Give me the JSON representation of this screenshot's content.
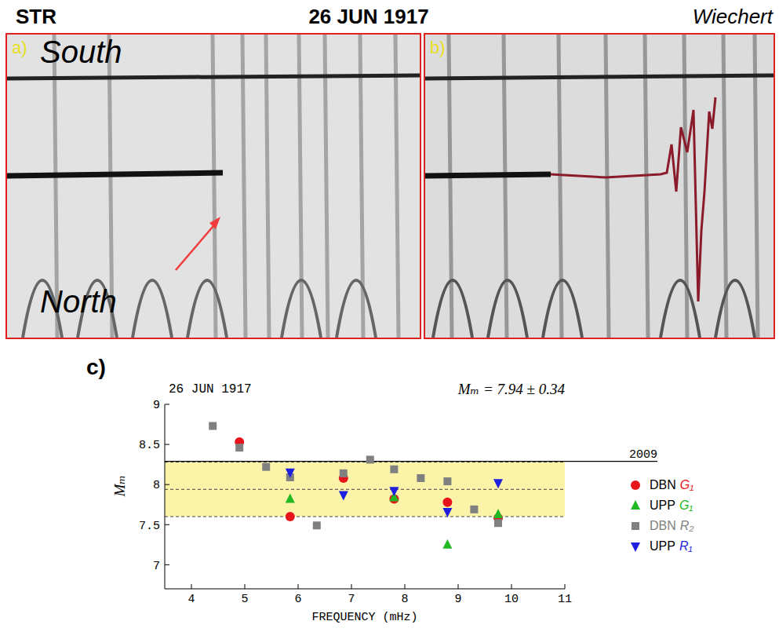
{
  "header": {
    "left": "STR",
    "center": "26 JUN 1917",
    "right": "Wiechert"
  },
  "panels": [
    {
      "letter": "a)",
      "top_label": "South",
      "bottom_label": "North"
    },
    {
      "letter": "b)"
    }
  ],
  "chart_data": {
    "type": "scatter",
    "panel_letter": "c)",
    "title": "26 JUN 1917",
    "subtitle": "Mₘ = 7.94 ± 0.34",
    "x_label": "FREQUENCY (mHz)",
    "y_label": "Mₘ",
    "xlim": [
      3.5,
      11
    ],
    "xticks": [
      4,
      5,
      6,
      7,
      8,
      9,
      10,
      11
    ],
    "ylim": [
      6.7,
      9
    ],
    "yticks": [
      7,
      7.5,
      8,
      8.5,
      9
    ],
    "band": {
      "center": 7.94,
      "half_width": 0.34
    },
    "annotations": [
      {
        "y": 8.29,
        "label": "2009"
      }
    ],
    "legend": "right",
    "series": [
      {
        "name": "DBN G₁",
        "color": "#e8141c",
        "marker": "circle",
        "x": [
          4.9,
          5.85,
          6.85,
          7.8,
          8.8,
          9.75
        ],
        "values": [
          8.53,
          7.6,
          8.08,
          7.82,
          7.78,
          7.58
        ]
      },
      {
        "name": "UPP G₁",
        "color": "#22b822",
        "marker": "triangle",
        "x": [
          5.85,
          7.8,
          8.8,
          9.75
        ],
        "values": [
          7.82,
          7.84,
          7.25,
          7.63
        ]
      },
      {
        "name": "DBN R₂",
        "color": "#808080",
        "marker": "square",
        "x": [
          4.4,
          4.9,
          5.4,
          5.85,
          6.35,
          6.85,
          7.35,
          7.8,
          8.3,
          8.8,
          9.3,
          9.75
        ],
        "values": [
          8.73,
          8.46,
          8.22,
          8.09,
          7.49,
          8.14,
          8.31,
          8.19,
          8.08,
          8.04,
          7.69,
          7.52
        ]
      },
      {
        "name": "UPP R₁",
        "color": "#1f1fe0",
        "marker": "triangle-down",
        "x": [
          5.85,
          6.85,
          7.8,
          8.8,
          9.75
        ],
        "values": [
          8.15,
          7.87,
          7.92,
          7.66,
          8.02
        ]
      }
    ]
  }
}
